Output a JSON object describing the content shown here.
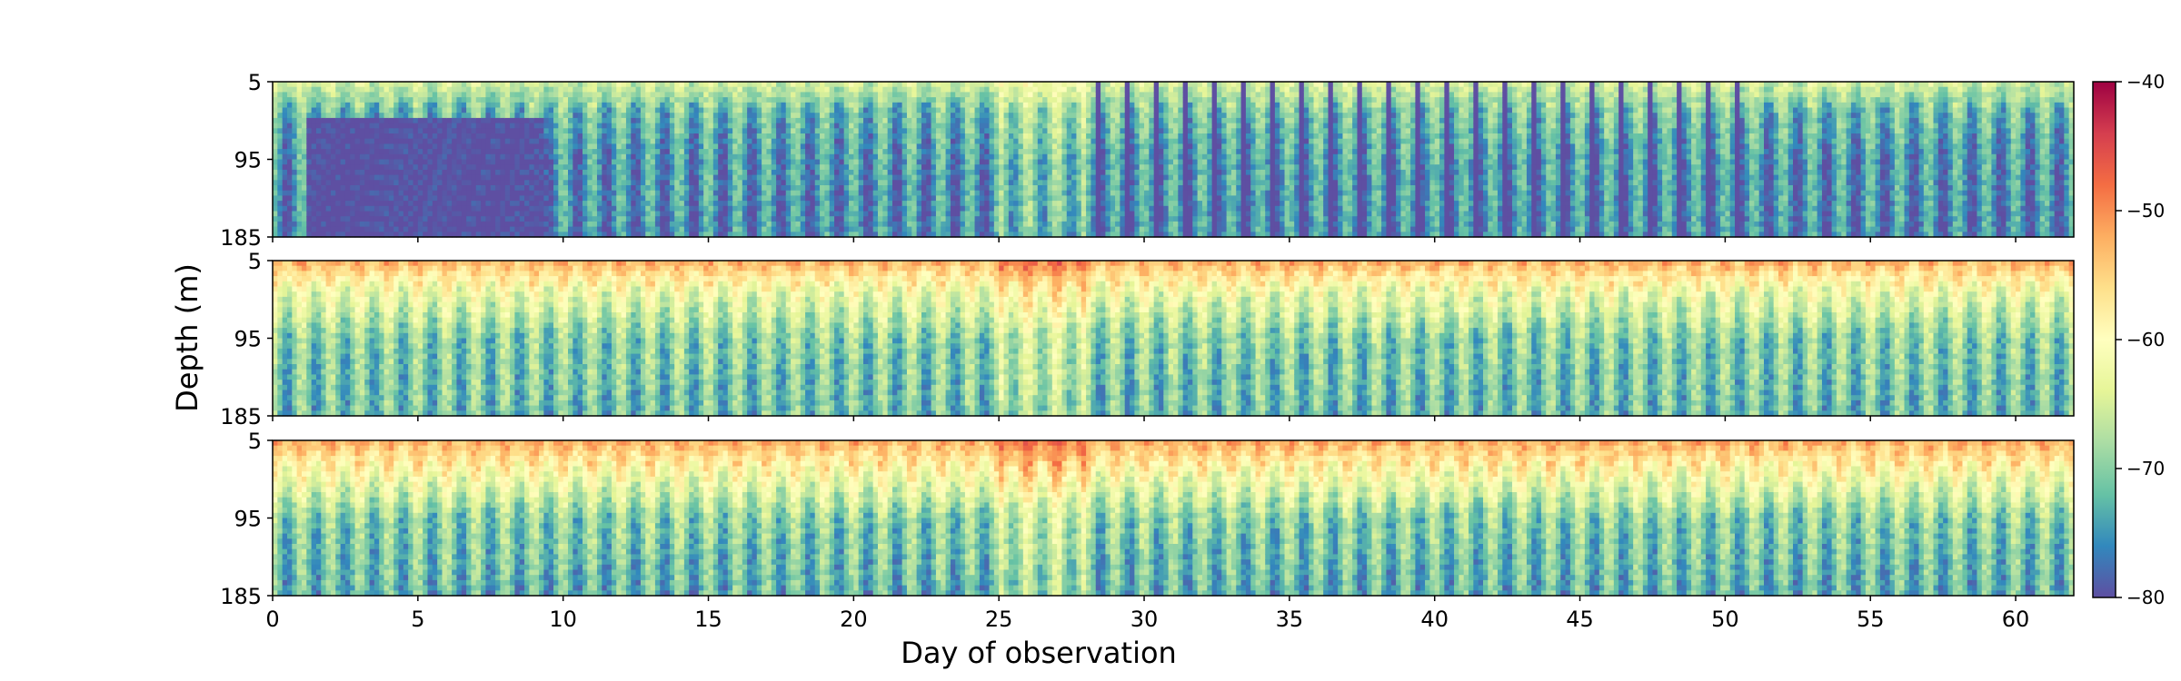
{
  "chart_data": {
    "type": "heatmap",
    "xlabel": "Day of observation",
    "ylabel": "Depth (m)",
    "x_ticks": [
      0,
      5,
      10,
      15,
      20,
      25,
      30,
      35,
      40,
      45,
      50,
      55,
      60
    ],
    "y_ticks": [
      5,
      95,
      185
    ],
    "xlim": [
      0,
      62
    ],
    "ylim": [
      185,
      5
    ],
    "colorbar": {
      "colormap": "Spectral_r",
      "range": [
        -80,
        -40
      ],
      "ticks": [
        -40,
        -50,
        -60,
        -70,
        -80
      ]
    },
    "panels": [
      {
        "description_free": true,
        "depth_profile": [
          [
            5,
            -65
          ],
          [
            40,
            -72
          ],
          [
            95,
            -75
          ],
          [
            185,
            -76
          ]
        ],
        "amplitude": 4.5,
        "features": [
          {
            "day_start": 1.2,
            "day_end": 9.3,
            "depth_start": 50,
            "value": -80
          },
          {
            "day_start": 27.5,
            "day_end": 51,
            "pulses": "dark_daily",
            "value": -80
          }
        ]
      },
      {
        "depth_profile": [
          [
            5,
            -52
          ],
          [
            40,
            -62
          ],
          [
            95,
            -70
          ],
          [
            185,
            -72
          ]
        ],
        "amplitude": 4.5,
        "features": []
      },
      {
        "depth_profile": [
          [
            5,
            -52
          ],
          [
            40,
            -60
          ],
          [
            95,
            -70
          ],
          [
            185,
            -73
          ]
        ],
        "amplitude": 4.5,
        "features": []
      }
    ]
  }
}
